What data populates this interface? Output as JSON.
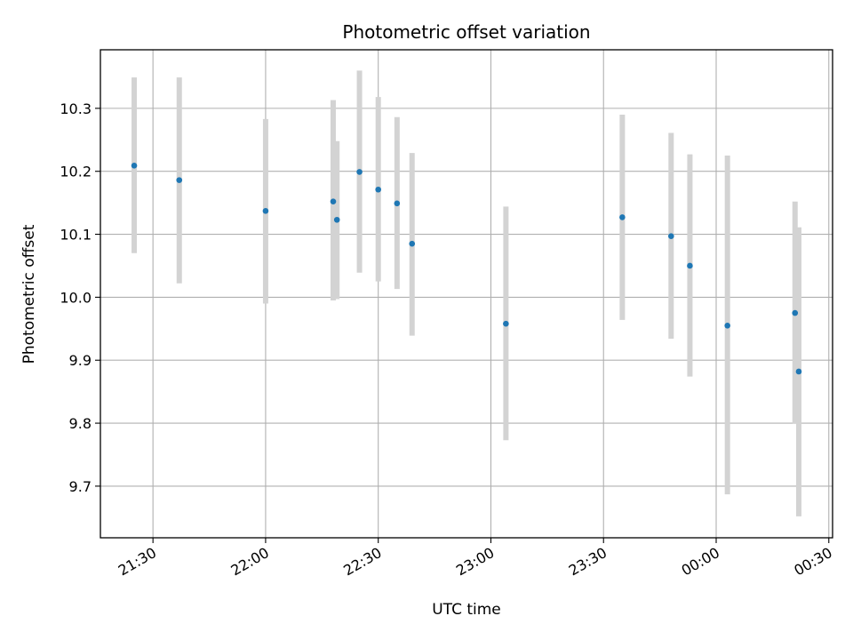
{
  "chart_data": {
    "type": "scatter",
    "title": "Photometric offset variation",
    "xlabel": "UTC time",
    "ylabel": "Photometric offset",
    "grid": true,
    "xlim": [
      "21:16",
      "00:31"
    ],
    "ylim": [
      9.618,
      10.393
    ],
    "x_ticks": [
      "21:30",
      "22:00",
      "22:30",
      "23:00",
      "23:30",
      "00:00",
      "00:30"
    ],
    "y_ticks": [
      "9.7",
      "9.8",
      "9.9",
      "10.0",
      "10.1",
      "10.2",
      "10.3"
    ],
    "colors": {
      "marker": "#1f77b4",
      "errorbar": "#d3d3d3",
      "grid": "#b0b0b0"
    },
    "series": [
      {
        "points": [
          {
            "x": "21:25",
            "y": 10.209,
            "y_err_low": 10.07,
            "y_err_high": 10.349
          },
          {
            "x": "21:37",
            "y": 10.186,
            "y_err_low": 10.022,
            "y_err_high": 10.349
          },
          {
            "x": "22:00",
            "y": 10.137,
            "y_err_low": 9.99,
            "y_err_high": 10.283
          },
          {
            "x": "22:18",
            "y": 10.152,
            "y_err_low": 9.995,
            "y_err_high": 10.313
          },
          {
            "x": "22:19",
            "y": 10.123,
            "y_err_low": 9.997,
            "y_err_high": 10.248
          },
          {
            "x": "22:25",
            "y": 10.199,
            "y_err_low": 10.039,
            "y_err_high": 10.36
          },
          {
            "x": "22:30",
            "y": 10.171,
            "y_err_low": 10.025,
            "y_err_high": 10.318
          },
          {
            "x": "22:35",
            "y": 10.149,
            "y_err_low": 10.013,
            "y_err_high": 10.286
          },
          {
            "x": "22:39",
            "y": 10.085,
            "y_err_low": 9.939,
            "y_err_high": 10.229
          },
          {
            "x": "23:04",
            "y": 9.958,
            "y_err_low": 9.773,
            "y_err_high": 10.144
          },
          {
            "x": "23:35",
            "y": 10.127,
            "y_err_low": 9.964,
            "y_err_high": 10.29
          },
          {
            "x": "23:48",
            "y": 10.097,
            "y_err_low": 9.934,
            "y_err_high": 10.261
          },
          {
            "x": "23:53",
            "y": 10.05,
            "y_err_low": 9.874,
            "y_err_high": 10.227
          },
          {
            "x": "00:03",
            "y": 9.955,
            "y_err_low": 9.687,
            "y_err_high": 10.225
          },
          {
            "x": "00:21",
            "y": 9.975,
            "y_err_low": 9.799,
            "y_err_high": 10.152
          },
          {
            "x": "00:22",
            "y": 9.882,
            "y_err_low": 9.652,
            "y_err_high": 10.111
          }
        ]
      }
    ]
  }
}
